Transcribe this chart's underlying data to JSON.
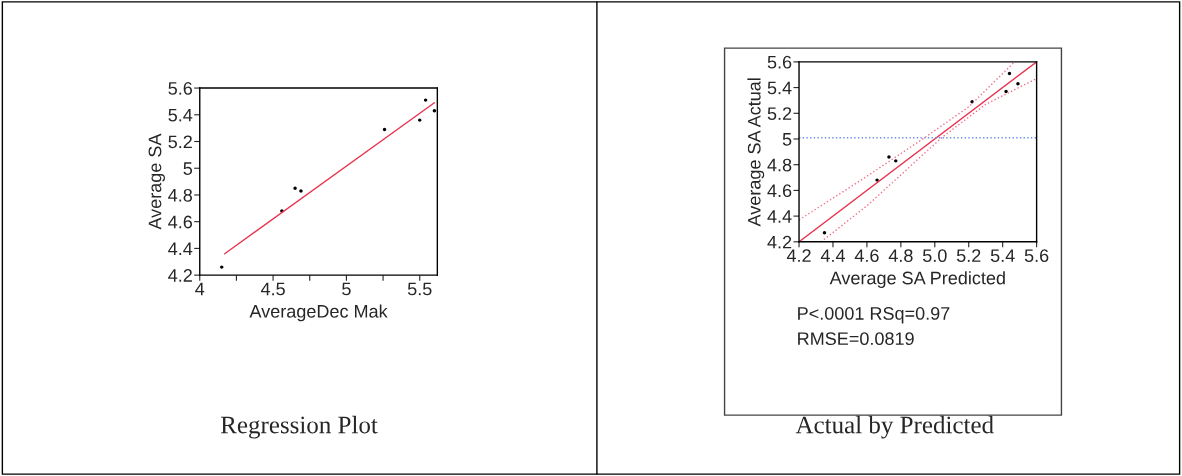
{
  "chart_data": [
    {
      "type": "scatter",
      "title": "Regression Plot",
      "xlabel": "AverageDec Mak",
      "ylabel": "Average SA",
      "xlim": [
        4,
        5.62
      ],
      "ylim": [
        4.2,
        5.6
      ],
      "xticks": [
        4,
        {
          "value": 4.25,
          "label": null
        },
        4.5,
        {
          "value": 4.75,
          "label": null
        },
        5,
        {
          "value": 5.25,
          "label": null
        },
        5.5
      ],
      "yticks": [
        4.2,
        4.4,
        4.6,
        4.8,
        5,
        5.2,
        5.4,
        5.6
      ],
      "grid": false,
      "legend": false,
      "series": [
        {
          "color": "#000000",
          "marker": "circle",
          "x": [
            4.15,
            4.56,
            4.65,
            4.69,
            5.26,
            5.5,
            5.54,
            5.6
          ],
          "values": [
            4.26,
            4.68,
            4.85,
            4.83,
            5.29,
            5.36,
            5.51,
            5.43
          ]
        },
        {
          "type": "line",
          "color": "#e8344e",
          "marker": "none",
          "line_style": "solid",
          "x": [
            4.17,
            5.6
          ],
          "values": [
            4.36,
            5.49
          ]
        }
      ]
    },
    {
      "type": "scatter",
      "title": "Actual by Predicted",
      "xlabel": "Average SA Predicted",
      "ylabel": "Average SA Actual",
      "xlim": [
        4.2,
        5.6
      ],
      "ylim": [
        4.2,
        5.6
      ],
      "xticks": [
        {
          "value": 4.2,
          "label": "4.2"
        },
        {
          "value": 4.4,
          "label": "4.4"
        },
        {
          "value": 4.6,
          "label": "4.6"
        },
        {
          "value": 4.8,
          "label": "4.8"
        },
        {
          "value": 5.0,
          "label": "5.0"
        },
        {
          "value": 5.2,
          "label": "5.2"
        },
        {
          "value": 5.4,
          "label": "5.4"
        },
        {
          "value": 5.6,
          "label": "5.6"
        }
      ],
      "yticks": [
        4.2,
        4.4,
        4.6,
        4.8,
        5,
        5.2,
        5.4,
        5.6
      ],
      "grid": false,
      "legend": false,
      "annotations": [
        "P<.0001 RSq=0.97",
        "RMSE=0.0819"
      ],
      "ref_lines": [
        {
          "axis": "y",
          "value": 5.01,
          "color": "#6a8fe8",
          "line_style": "dotted"
        }
      ],
      "series": [
        {
          "color": "#000000",
          "marker": "circle",
          "x": [
            4.35,
            4.66,
            4.73,
            4.77,
            5.22,
            5.42,
            5.44,
            5.49
          ],
          "values": [
            4.27,
            4.68,
            4.86,
            4.83,
            5.29,
            5.37,
            5.51,
            5.43
          ]
        },
        {
          "type": "line",
          "color": "#e8344e",
          "marker": "none",
          "line_style": "solid",
          "x": [
            4.2,
            5.6
          ],
          "values": [
            4.2,
            5.6
          ]
        },
        {
          "type": "line",
          "color": "#f07088",
          "marker": "none",
          "line_style": "dotted",
          "x": [
            4.2,
            4.6,
            4.94,
            5.2,
            5.47
          ],
          "values": [
            4.37,
            4.71,
            5.01,
            5.25,
            5.6
          ]
        },
        {
          "type": "line",
          "color": "#f07088",
          "marker": "none",
          "line_style": "dotted",
          "x": [
            4.33,
            4.6,
            5.04,
            5.3,
            5.6
          ],
          "values": [
            4.2,
            4.48,
            5.01,
            5.27,
            5.47
          ]
        }
      ]
    }
  ]
}
